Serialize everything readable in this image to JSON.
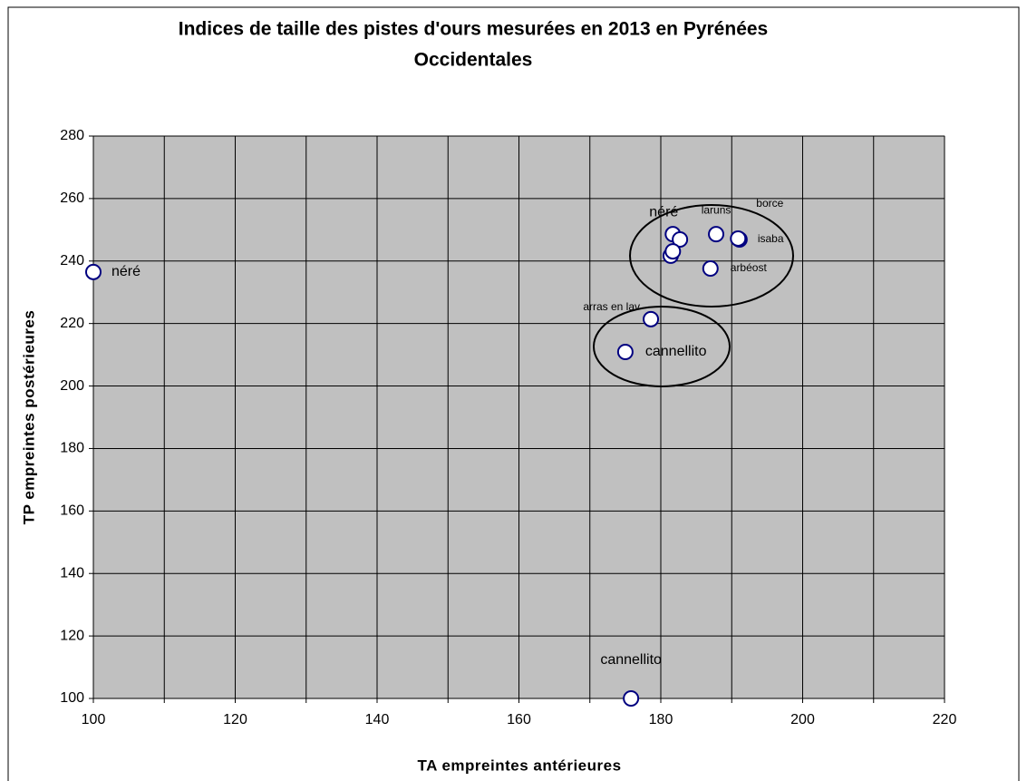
{
  "chart_data": {
    "type": "scatter",
    "title": [
      "Indices de taille des pistes d'ours  mesurées en 2013 en Pyrénées",
      "Occidentales"
    ],
    "x_label": "TA empreintes antérieures",
    "y_label": "TP empreintes postérieures",
    "x": [
      100,
      175.8,
      175,
      178.6,
      181.7,
      182.7,
      181.4,
      181.7,
      187.8,
      191.1,
      190.9,
      187
    ],
    "values": [
      236.5,
      100,
      210.9,
      221.4,
      248.6,
      246.9,
      241.7,
      243.1,
      248.6,
      246.9,
      247.2,
      237.6
    ],
    "point_labels": [
      "néré",
      "cannellito",
      "cannellito",
      "arras en lav",
      "néré",
      null,
      null,
      null,
      "laruns",
      "isaba",
      "borce",
      "arbéost"
    ],
    "color": "#000080",
    "xlim": [
      100,
      220
    ],
    "xticks": [
      100,
      120,
      140,
      160,
      180,
      200,
      220
    ],
    "x_minor_gridlines": [
      110,
      130,
      150,
      170,
      190,
      210
    ],
    "ylim": [
      100,
      280
    ],
    "yticks": [
      100,
      120,
      140,
      160,
      180,
      200,
      220,
      240,
      260,
      280
    ],
    "grid": true,
    "plot_background": "#c0c0c0"
  }
}
